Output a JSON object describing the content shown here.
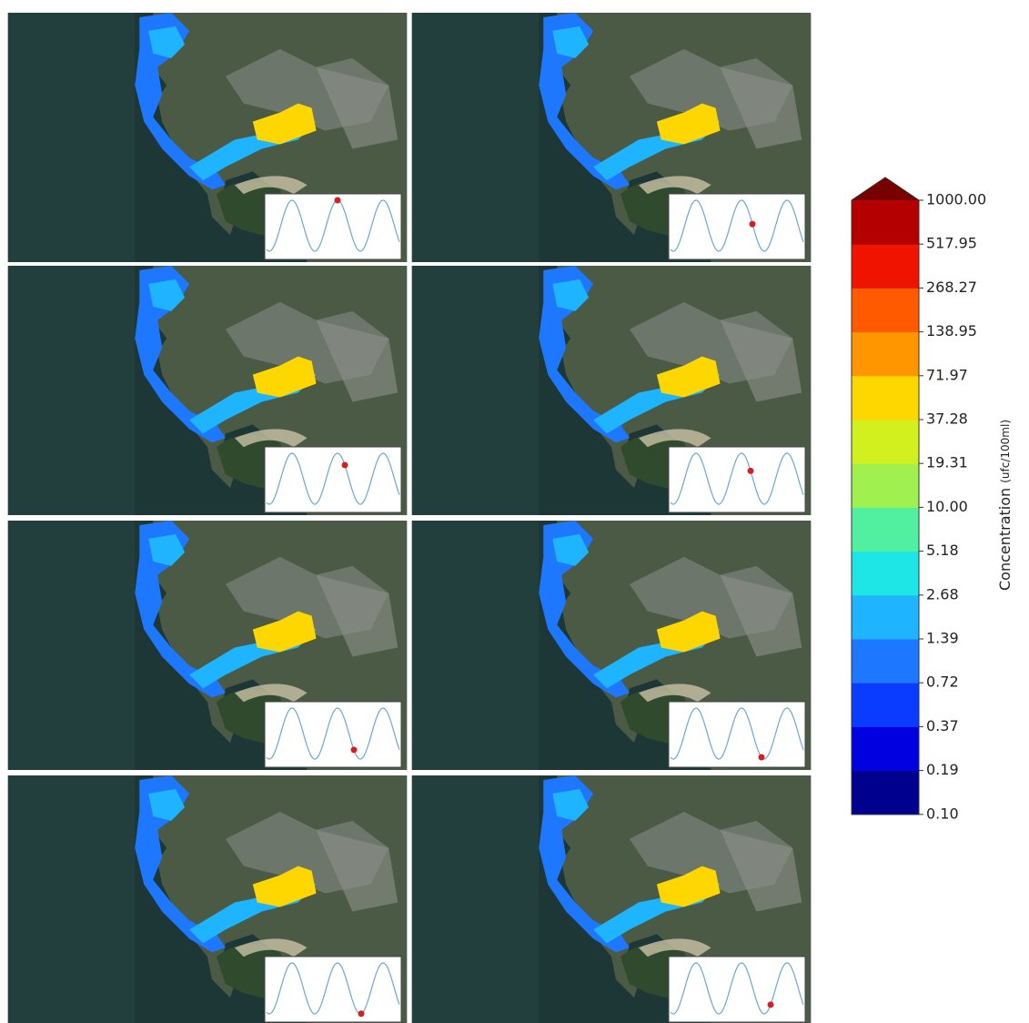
{
  "colorbar": {
    "ticks": [
      "1000.00",
      "517.95",
      "268.27",
      "138.95",
      "71.97",
      "37.28",
      "19.31",
      "10.00",
      "5.18",
      "2.68",
      "1.39",
      "0.72",
      "0.37",
      "0.19",
      "0.10"
    ],
    "colors": [
      "#00008f",
      "#0000e0",
      "#0a3cff",
      "#1e78ff",
      "#1eb4ff",
      "#1ee6e6",
      "#50f0a0",
      "#a0f050",
      "#d2f01e",
      "#ffd700",
      "#ff9600",
      "#ff5a00",
      "#f01400",
      "#b40000"
    ],
    "extend_color": "#780000",
    "label": "Concentration",
    "unit": "(ufc/100ml)"
  }
}
